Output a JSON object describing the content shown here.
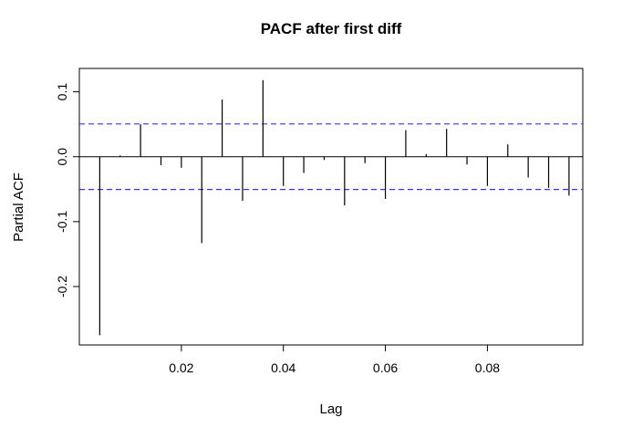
{
  "chart_data": {
    "type": "bar",
    "subtype": "pacf-spikes",
    "title": "PACF after first diff",
    "xlabel": "Lag",
    "ylabel": "Partial ACF",
    "xlim": [
      0.0,
      0.0987
    ],
    "ylim": [
      -0.29,
      0.136
    ],
    "x_ticks": [
      {
        "value": 0.02,
        "label": "0.02"
      },
      {
        "value": 0.04,
        "label": "0.04"
      },
      {
        "value": 0.06,
        "label": "0.06"
      },
      {
        "value": 0.08,
        "label": "0.08"
      }
    ],
    "y_ticks": [
      {
        "value": -0.2,
        "label": "-0.2"
      },
      {
        "value": -0.1,
        "label": "-0.1"
      },
      {
        "value": 0.0,
        "label": "0.0"
      },
      {
        "value": 0.1,
        "label": "0.1"
      }
    ],
    "confidence_limits": [
      0.0505,
      -0.0505
    ],
    "confidence_color": "#3333ff",
    "grid": false,
    "legend": "none",
    "x": [
      0.004,
      0.008,
      0.012,
      0.016,
      0.02,
      0.024,
      0.028,
      0.032,
      0.036,
      0.04,
      0.044,
      0.048,
      0.052,
      0.056,
      0.06,
      0.064,
      0.068,
      0.072,
      0.076,
      0.08,
      0.084,
      0.088,
      0.092,
      0.096
    ],
    "values": [
      -0.275,
      0.002,
      0.05,
      -0.013,
      -0.017,
      -0.133,
      0.088,
      -0.068,
      0.118,
      -0.045,
      -0.025,
      -0.005,
      -0.075,
      -0.01,
      -0.065,
      0.041,
      0.004,
      0.043,
      -0.012,
      -0.045,
      0.019,
      -0.032,
      -0.048,
      -0.06
    ]
  }
}
